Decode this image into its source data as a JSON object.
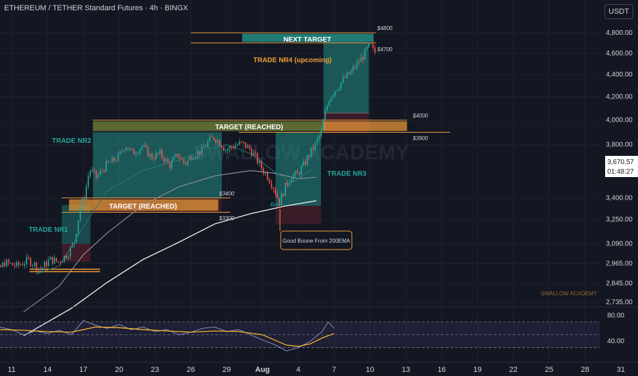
{
  "header": {
    "title": "ETHEREUM / TETHER Standard Futures · 4h · BINGX",
    "currency_button": "USDT"
  },
  "watermark": "SWALLOW ACADEMY",
  "watermark_small": "SWALLOW ACADEMY",
  "colors": {
    "background": "#131722",
    "green_zone": "#26a69a",
    "red_zone": "#5d1f2d",
    "orange": "#f29d38",
    "up_candle": "#26a69a",
    "down_candle": "#ef5350",
    "ema_white": "#e8e8e8",
    "ema_gray": "#8c8f99",
    "rsi_purple": "#8b90b8",
    "rsi_yellow": "#f5b82e"
  },
  "annotations": {
    "trade_nr1": "TRADE NR1",
    "trade_nr2": "TRADE NR2",
    "trade_nr3": "TRADE NR3",
    "trade_nr4": "TRADE NR4 (upcoming)",
    "target_reached_1": "TARGET (REACHED)",
    "target_reached_2": "TARGET (REACHED)",
    "next_target": "NEXT TARGET",
    "good_bounce": "Good Boune From 200EMA",
    "buy": "Buy"
  },
  "chart_data": {
    "type": "candlestick",
    "title": "ETHEREUM / TETHER Standard Futures · 4h · BINGX",
    "y_axis": {
      "scale": "log",
      "ticks": [
        "4,800.00",
        "4,600.00",
        "4,400.00",
        "4,200.00",
        "4,000.00",
        "3,800.00",
        "3,400.00",
        "3,250.00",
        "3,090.00",
        "2,965.00",
        "2,845.00",
        "2,735.00"
      ],
      "tick_values": [
        4800,
        4600,
        4400,
        4200,
        4000,
        3800,
        3400,
        3250,
        3090,
        2965,
        2845,
        2735
      ]
    },
    "x_axis": {
      "ticks": [
        "11",
        "14",
        "17",
        "20",
        "23",
        "26",
        "29",
        "Aug",
        "4",
        "7",
        "10",
        "13",
        "16",
        "19",
        "22",
        "25",
        "28",
        "31"
      ],
      "tick_days": [
        11,
        14,
        17,
        20,
        23,
        26,
        29,
        32,
        35,
        38,
        41,
        44,
        47,
        50,
        53,
        56,
        59,
        62
      ]
    },
    "price_labels": [
      "$4800",
      "$4700",
      "$4000",
      "$3900",
      "$3400",
      "$3300"
    ],
    "current_price": "3,670.57",
    "countdown": "01:48:27",
    "price_path": [
      [
        8,
        2730
      ],
      [
        9.2,
        2860
      ],
      [
        10.5,
        2970
      ],
      [
        11.5,
        2950
      ],
      [
        12.5,
        2985
      ],
      [
        13.5,
        2930
      ],
      [
        14.3,
        2990
      ],
      [
        15,
        2975
      ],
      [
        15.7,
        3020
      ],
      [
        16.3,
        3090
      ],
      [
        16.8,
        3320
      ],
      [
        17.2,
        3420
      ],
      [
        17.6,
        3610
      ],
      [
        18.2,
        3550
      ],
      [
        19,
        3640
      ],
      [
        20,
        3700
      ],
      [
        20.6,
        3800
      ],
      [
        21.2,
        3730
      ],
      [
        22,
        3790
      ],
      [
        22.8,
        3700
      ],
      [
        23.5,
        3730
      ],
      [
        24.3,
        3640
      ],
      [
        25,
        3720
      ],
      [
        25.6,
        3650
      ],
      [
        26.2,
        3720
      ],
      [
        27,
        3750
      ],
      [
        27.5,
        3820
      ],
      [
        28,
        3860
      ],
      [
        28.5,
        3820
      ],
      [
        29,
        3760
      ],
      [
        29.6,
        3790
      ],
      [
        30.3,
        3810
      ],
      [
        31,
        3770
      ],
      [
        31.5,
        3700
      ],
      [
        32,
        3620
      ],
      [
        32.5,
        3560
      ],
      [
        33,
        3480
      ],
      [
        33.5,
        3370
      ],
      [
        34,
        3480
      ],
      [
        34.5,
        3560
      ],
      [
        35,
        3570
      ],
      [
        35.5,
        3640
      ],
      [
        36,
        3720
      ],
      [
        36.5,
        3800
      ],
      [
        37,
        3900
      ],
      [
        37.3,
        4050
      ],
      [
        37.7,
        4200
      ],
      [
        38.3,
        4280
      ],
      [
        38.9,
        4360
      ],
      [
        39.5,
        4420
      ],
      [
        40,
        4500
      ],
      [
        40.5,
        4570
      ],
      [
        40.9,
        4650
      ],
      [
        41.1,
        4680
      ],
      [
        41.4,
        4610
      ]
    ],
    "ema_200_path": [
      [
        12,
        2550
      ],
      [
        16,
        2700
      ],
      [
        19,
        2850
      ],
      [
        22,
        2990
      ],
      [
        25,
        3100
      ],
      [
        28,
        3220
      ],
      [
        31,
        3290
      ],
      [
        34,
        3345
      ],
      [
        36.5,
        3380
      ]
    ],
    "ema_50_path": [
      [
        12,
        2680
      ],
      [
        15,
        2830
      ],
      [
        17,
        3020
      ],
      [
        19,
        3160
      ],
      [
        22,
        3350
      ],
      [
        25,
        3480
      ],
      [
        28,
        3560
      ],
      [
        31,
        3600
      ],
      [
        33,
        3580
      ],
      [
        35,
        3540
      ],
      [
        36.5,
        3550
      ]
    ],
    "ema_20_path": [
      [
        13,
        2900
      ],
      [
        15,
        2950
      ],
      [
        17,
        3200
      ],
      [
        19,
        3450
      ],
      [
        22,
        3600
      ],
      [
        25,
        3680
      ],
      [
        27.5,
        3770
      ],
      [
        29,
        3800
      ],
      [
        31,
        3730
      ],
      [
        33,
        3590
      ],
      [
        34.5,
        3510
      ],
      [
        36,
        3600
      ]
    ],
    "rsi": {
      "ticks": [
        "80.00",
        "40.00"
      ],
      "tick_values": [
        80,
        40
      ],
      "upper_band": 70,
      "lower_band": 30,
      "rsi_path": [
        [
          8,
          60
        ],
        [
          9,
          55
        ],
        [
          10,
          62
        ],
        [
          11,
          58
        ],
        [
          12,
          50
        ],
        [
          13,
          56
        ],
        [
          14,
          52
        ],
        [
          15,
          57
        ],
        [
          16,
          50
        ],
        [
          17,
          72
        ],
        [
          18,
          65
        ],
        [
          19,
          60
        ],
        [
          20,
          66
        ],
        [
          21,
          58
        ],
        [
          22,
          62
        ],
        [
          23,
          55
        ],
        [
          24,
          58
        ],
        [
          25,
          50
        ],
        [
          26,
          54
        ],
        [
          27,
          60
        ],
        [
          28,
          62
        ],
        [
          29,
          55
        ],
        [
          30,
          58
        ],
        [
          31,
          50
        ],
        [
          32,
          42
        ],
        [
          33,
          35
        ],
        [
          34,
          25
        ],
        [
          35,
          30
        ],
        [
          36,
          40
        ],
        [
          37,
          55
        ],
        [
          37.5,
          70
        ],
        [
          38,
          60
        ]
      ],
      "ma_path": [
        [
          8,
          55
        ],
        [
          10,
          58
        ],
        [
          12,
          57
        ],
        [
          14,
          55
        ],
        [
          16,
          54
        ],
        [
          18,
          62
        ],
        [
          20,
          61
        ],
        [
          22,
          58
        ],
        [
          24,
          56
        ],
        [
          26,
          54
        ],
        [
          28,
          56
        ],
        [
          30,
          55
        ],
        [
          32,
          50
        ],
        [
          34,
          34
        ],
        [
          35,
          32
        ],
        [
          36,
          36
        ],
        [
          37,
          45
        ],
        [
          38,
          52
        ]
      ]
    }
  }
}
